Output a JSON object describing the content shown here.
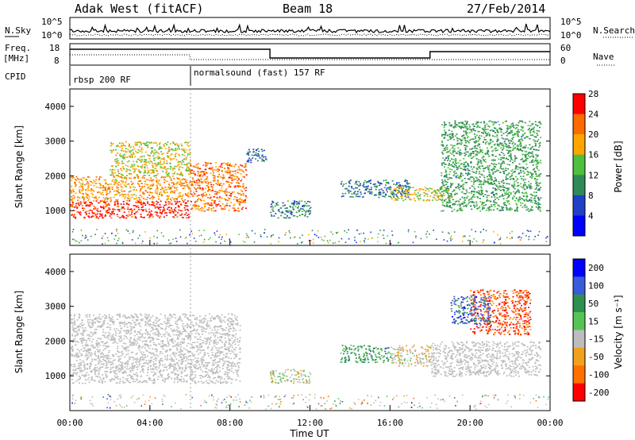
{
  "header": {
    "station": "Adak West (fitACF)",
    "beam": "Beam 18",
    "date": "27/Feb/2014"
  },
  "nsky_panel": {
    "left_label": "N.Sky",
    "right_label": "N.Search",
    "left_ticks": [
      "10^5",
      "10^0"
    ],
    "right_ticks": [
      "10^5",
      "10^0"
    ]
  },
  "freq_panel": {
    "left_label_top": "Freq.",
    "left_label_unit": "[MHz]",
    "left_ticks": [
      "18",
      "8"
    ],
    "right_label": "Nave",
    "right_ticks": [
      "60",
      "0"
    ]
  },
  "cpid_panel": {
    "label": "CPID",
    "programs": [
      {
        "name": "rbsp 200 RF",
        "start_hour": 0
      },
      {
        "name": "normalsound (fast) 157 RF",
        "start_hour": 6
      }
    ]
  },
  "colors": {
    "power_scale": [
      "#0000ff",
      "#2040c8",
      "#2e8b57",
      "#4fbf3f",
      "#ffa500",
      "#ff6a00",
      "#ff0000"
    ],
    "velocity_scale": [
      "#0000ff",
      "#3a5bd9",
      "#2f8f4f",
      "#55c455",
      "#bdbdbd",
      "#f2a020",
      "#ff7000",
      "#ff0000"
    ],
    "ground_scatter": "#bdbdbd"
  },
  "chart_data": [
    {
      "type": "heatmap",
      "panel": "power",
      "ylabel": "Slant Range [km]",
      "ylim": [
        0,
        4500
      ],
      "y_ticks": [
        "1000",
        "2000",
        "3000",
        "4000"
      ],
      "xlim": [
        0,
        24
      ],
      "colorbar_label": "Power [dB]",
      "colorbar_ticks": [
        "4",
        "8",
        "12",
        "16",
        "20",
        "24",
        "28"
      ],
      "colorbar_range": [
        0,
        32
      ],
      "regions": [
        {
          "t0": 0,
          "t1": 6,
          "r0": 800,
          "r1": 1300,
          "value": 29
        },
        {
          "t0": 0,
          "t1": 6,
          "r0": 1300,
          "r1": 2000,
          "value": 22
        },
        {
          "t0": 2,
          "t1": 6,
          "r0": 2000,
          "r1": 3000,
          "value": 19
        },
        {
          "t0": 6,
          "t1": 8.8,
          "r0": 1000,
          "r1": 2400,
          "value": 25
        },
        {
          "t0": 8.8,
          "t1": 9.8,
          "r0": 2400,
          "r1": 2800,
          "value": 9
        },
        {
          "t0": 10,
          "t1": 12,
          "r0": 800,
          "r1": 1300,
          "value": 11
        },
        {
          "t0": 13.5,
          "t1": 17,
          "r0": 1400,
          "r1": 1900,
          "value": 10
        },
        {
          "t0": 16,
          "t1": 19,
          "r0": 1300,
          "r1": 1700,
          "value": 19
        },
        {
          "t0": 18.5,
          "t1": 23.5,
          "r0": 1000,
          "r1": 3600,
          "value": 13
        }
      ]
    },
    {
      "type": "heatmap",
      "panel": "velocity",
      "ylabel": "Slant Range [km]",
      "ylim": [
        0,
        4500
      ],
      "y_ticks": [
        "1000",
        "2000",
        "3000",
        "4000"
      ],
      "xlim": [
        0,
        24
      ],
      "xlabel": "Time UT",
      "x_ticks": [
        "00:00",
        "04:00",
        "08:00",
        "12:00",
        "16:00",
        "20:00",
        "00:00"
      ],
      "colorbar_label": "Velocity [m s⁻¹]",
      "colorbar_ticks": [
        "200",
        "100",
        "50",
        "15",
        "-15",
        "-50",
        "-100",
        "-200"
      ],
      "colorbar_range": [
        -250,
        250
      ],
      "regions": [
        {
          "t0": 0,
          "t1": 8.5,
          "r0": 800,
          "r1": 2800,
          "value": "ground_scatter"
        },
        {
          "t0": 10,
          "t1": 12,
          "r0": 800,
          "r1": 1200,
          "value": -30
        },
        {
          "t0": 13.5,
          "t1": 16,
          "r0": 1400,
          "r1": 1900,
          "value": 80
        },
        {
          "t0": 16,
          "t1": 18,
          "r0": 1300,
          "r1": 1900,
          "value": -40
        },
        {
          "t0": 18,
          "t1": 23.5,
          "r0": 1000,
          "r1": 2000,
          "value": "ground_scatter"
        },
        {
          "t0": 20,
          "t1": 23,
          "r0": 2200,
          "r1": 3500,
          "value": -180
        },
        {
          "t0": 19,
          "t1": 21,
          "r0": 2500,
          "r1": 3300,
          "value": 150
        }
      ]
    }
  ]
}
